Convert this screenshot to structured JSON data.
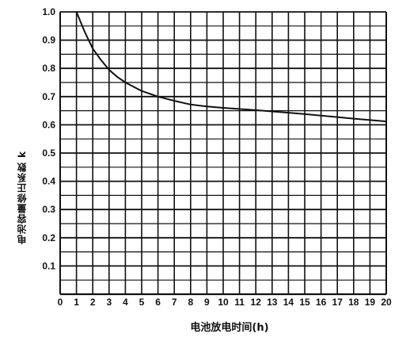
{
  "chart_data": {
    "type": "line",
    "title": "",
    "xlabel": "电池放电时间(h)",
    "ylabel": "电池容量修正系数 k",
    "xlim": [
      0,
      20
    ],
    "ylim": [
      0,
      1.0
    ],
    "grid": true,
    "x_ticks": [
      "0",
      "1",
      "2",
      "3",
      "4",
      "5",
      "6",
      "7",
      "8",
      "9",
      "10",
      "11",
      "12",
      "13",
      "14",
      "15",
      "16",
      "17",
      "18",
      "19",
      "20"
    ],
    "y_ticks": [
      "0.1",
      "0.2",
      "0.3",
      "0.4",
      "0.5",
      "0.6",
      "0.7",
      "0.8",
      "0.9",
      "1.0"
    ],
    "series": [
      {
        "x": [
          1.0,
          1.5,
          2.0,
          2.5,
          3.0,
          3.5,
          4.0,
          5.0,
          6.0,
          7.0,
          8.0,
          9.0,
          10.0,
          12.0,
          14.0,
          16.0,
          18.0,
          20.0
        ],
        "y": [
          1.0,
          0.93,
          0.87,
          0.83,
          0.795,
          0.77,
          0.75,
          0.72,
          0.7,
          0.685,
          0.672,
          0.665,
          0.66,
          0.652,
          0.643,
          0.633,
          0.622,
          0.612
        ]
      }
    ]
  }
}
